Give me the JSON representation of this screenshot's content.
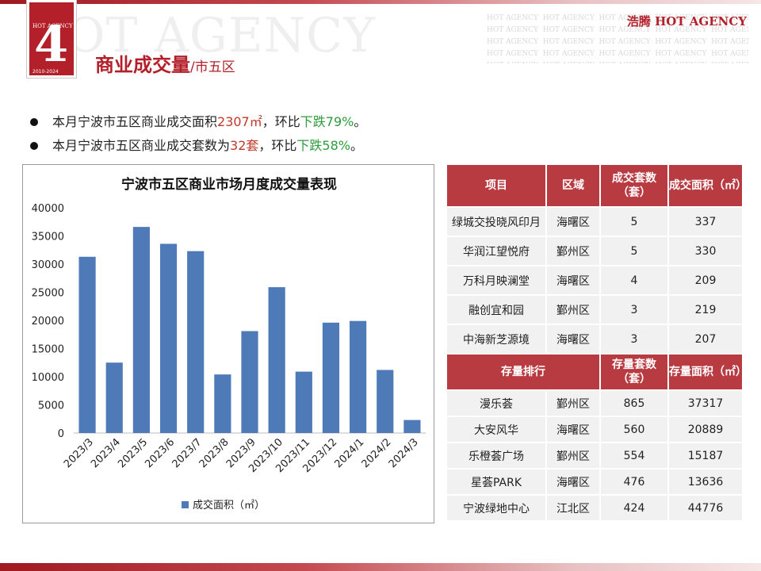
{
  "header": {
    "watermark_left": "HOT AGENCY",
    "logo": {
      "top_text": "HOT AGENCY",
      "number": "4",
      "years": "2010-2024"
    },
    "brand": "浩腾 HOT AGENCY",
    "title_main": "商业成交量",
    "title_sub": "/市五区"
  },
  "bullets": [
    {
      "prefix": "本月宁波市五区商业成交面积",
      "value": "2307㎡",
      "mid": "，环比",
      "change": "下跌79%",
      "suffix": "。"
    },
    {
      "prefix": "本月宁波市五区商业成交套数为",
      "value": "32套",
      "mid": "，环比",
      "change": "下跌58%",
      "suffix": "。"
    }
  ],
  "chart_data": {
    "type": "bar",
    "title": "宁波市五区商业市场月度成交量表现",
    "categories": [
      "2023/3",
      "2023/4",
      "2023/5",
      "2023/6",
      "2023/7",
      "2023/8",
      "2023/9",
      "2023/10",
      "2023/11",
      "2023/12",
      "2024/1",
      "2024/2",
      "2024/3"
    ],
    "series": [
      {
        "name": "成交面积（㎡）",
        "values": [
          31300,
          12500,
          36600,
          33600,
          32300,
          10400,
          18100,
          25900,
          10900,
          19600,
          19900,
          11200,
          2307
        ]
      }
    ],
    "ylim": [
      0,
      40000
    ],
    "yticks": [
      0,
      5000,
      10000,
      15000,
      20000,
      25000,
      30000,
      35000,
      40000
    ],
    "xlabel": "",
    "ylabel": "",
    "grid": false,
    "legend": "bottom",
    "bar_color": "#4e7ab8"
  },
  "table": {
    "deal_headers": [
      "项目",
      "区域",
      "成交套数（套）",
      "成交面积（㎡）"
    ],
    "deal_rows": [
      [
        "绿城交投晓风印月",
        "海曙区",
        "5",
        "337"
      ],
      [
        "华润江望悦府",
        "鄞州区",
        "5",
        "330"
      ],
      [
        "万科月映澜堂",
        "海曙区",
        "4",
        "209"
      ],
      [
        "融创宜和园",
        "鄞州区",
        "3",
        "219"
      ],
      [
        "中海新芝源境",
        "海曙区",
        "3",
        "207"
      ]
    ],
    "stock_headers": [
      "存量排行",
      "存量套数（套）",
      "存量面积（㎡）"
    ],
    "stock_rows": [
      [
        "漫乐荟",
        "鄞州区",
        "865",
        "37317"
      ],
      [
        "大安风华",
        "海曙区",
        "560",
        "20889"
      ],
      [
        "乐橙荟广场",
        "鄞州区",
        "554",
        "15187"
      ],
      [
        "星荟PARK",
        "海曙区",
        "476",
        "13636"
      ],
      [
        "宁波绿地中心",
        "江北区",
        "424",
        "44776"
      ]
    ]
  }
}
